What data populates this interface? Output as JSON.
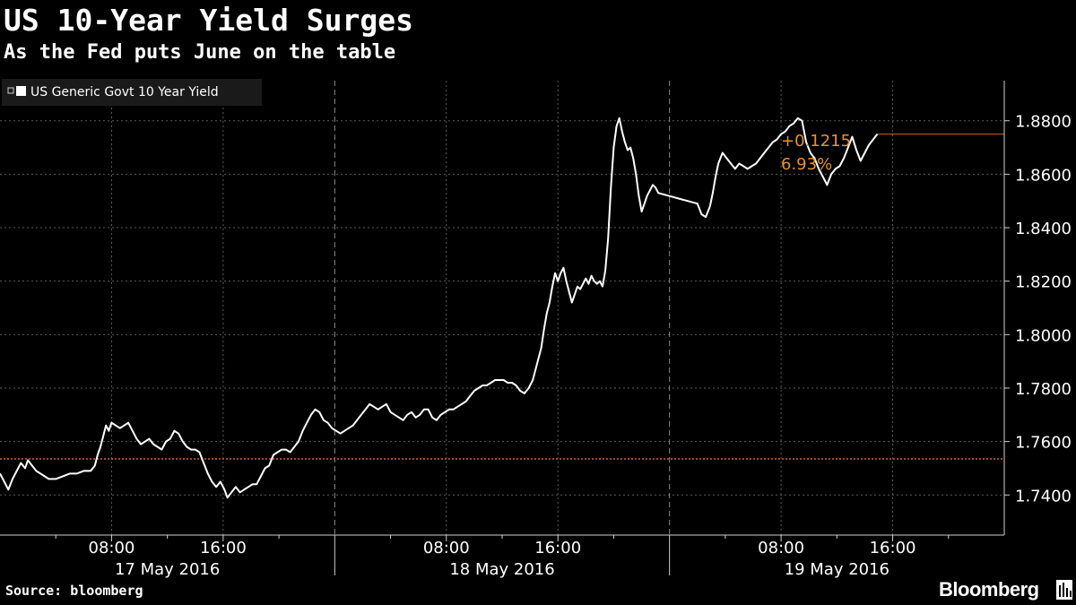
{
  "header": {
    "title": "US 10-Year Yield Surges",
    "subtitle": "As the Fed puts June on the table"
  },
  "footer": {
    "source": "Source: bloomberg",
    "brand": "Bloomberg"
  },
  "colors": {
    "background": "#000000",
    "line": "#ffffff",
    "accent": "#e8912e",
    "reference": "#c8672a",
    "grid": "#5a5a5a",
    "legend_bg": "#1a1a1a"
  },
  "chart_data": {
    "type": "line",
    "title": "US 10-Year Yield Surges",
    "subtitle": "As the Fed puts June on the table",
    "legend": {
      "entries": [
        "US Generic Govt 10 Year Yield"
      ],
      "placement": "top-left"
    },
    "y_axis": {
      "side": "right",
      "min": 1.725,
      "max": 1.895,
      "ticks": [
        1.74,
        1.76,
        1.78,
        1.8,
        1.82,
        1.84,
        1.86,
        1.88
      ],
      "tick_labels": [
        "1.7400",
        "1.7600",
        "1.7800",
        "1.8000",
        "1.8200",
        "1.8400",
        "1.8600",
        "1.8800"
      ]
    },
    "x_axis": {
      "min_hours": 0,
      "max_hours": 72,
      "time_ticks": [
        {
          "h": 8,
          "label": "08:00"
        },
        {
          "h": 16,
          "label": "16:00"
        },
        {
          "h": 32,
          "label": "08:00"
        },
        {
          "h": 40,
          "label": "16:00"
        },
        {
          "h": 56,
          "label": "08:00"
        },
        {
          "h": 64,
          "label": "16:00"
        }
      ],
      "minor_ticks_hours": [
        4,
        12,
        20,
        28,
        36,
        44,
        52,
        60,
        68
      ],
      "day_separators_hours": [
        24,
        48
      ],
      "day_labels": [
        {
          "h": 12,
          "label": "17 May 2016"
        },
        {
          "h": 36,
          "label": "18 May 2016"
        },
        {
          "h": 60,
          "label": "19 May 2016"
        }
      ]
    },
    "grid": true,
    "reference_line": {
      "value": 1.7535,
      "style": "dotted"
    },
    "last_value_line": {
      "value": 1.875
    },
    "change": {
      "abs": "+0.1215",
      "pct": "6.93%"
    },
    "series": [
      {
        "name": "US Generic Govt 10 Year Yield",
        "points": [
          [
            0.0,
            1.748
          ],
          [
            0.3,
            1.745
          ],
          [
            0.6,
            1.742
          ],
          [
            0.9,
            1.746
          ],
          [
            1.2,
            1.749
          ],
          [
            1.5,
            1.752
          ],
          [
            1.8,
            1.75
          ],
          [
            2.0,
            1.753
          ],
          [
            2.3,
            1.751
          ],
          [
            2.6,
            1.749
          ],
          [
            2.9,
            1.748
          ],
          [
            3.2,
            1.747
          ],
          [
            3.5,
            1.746
          ],
          [
            4.0,
            1.746
          ],
          [
            4.5,
            1.747
          ],
          [
            5.0,
            1.748
          ],
          [
            5.5,
            1.748
          ],
          [
            6.0,
            1.749
          ],
          [
            6.5,
            1.749
          ],
          [
            6.8,
            1.751
          ],
          [
            7.0,
            1.755
          ],
          [
            7.2,
            1.758
          ],
          [
            7.4,
            1.762
          ],
          [
            7.6,
            1.766
          ],
          [
            7.8,
            1.764
          ],
          [
            8.0,
            1.767
          ],
          [
            8.3,
            1.766
          ],
          [
            8.6,
            1.765
          ],
          [
            8.9,
            1.766
          ],
          [
            9.2,
            1.767
          ],
          [
            9.5,
            1.764
          ],
          [
            9.8,
            1.761
          ],
          [
            10.1,
            1.759
          ],
          [
            10.4,
            1.76
          ],
          [
            10.7,
            1.761
          ],
          [
            11.0,
            1.759
          ],
          [
            11.3,
            1.758
          ],
          [
            11.6,
            1.757
          ],
          [
            11.9,
            1.76
          ],
          [
            12.2,
            1.761
          ],
          [
            12.5,
            1.764
          ],
          [
            12.8,
            1.763
          ],
          [
            13.1,
            1.76
          ],
          [
            13.4,
            1.758
          ],
          [
            13.7,
            1.757
          ],
          [
            14.0,
            1.757
          ],
          [
            14.3,
            1.756
          ],
          [
            14.6,
            1.752
          ],
          [
            14.9,
            1.748
          ],
          [
            15.2,
            1.745
          ],
          [
            15.5,
            1.743
          ],
          [
            15.8,
            1.745
          ],
          [
            16.1,
            1.742
          ],
          [
            16.3,
            1.739
          ],
          [
            16.6,
            1.741
          ],
          [
            16.9,
            1.743
          ],
          [
            17.2,
            1.741
          ],
          [
            17.5,
            1.742
          ],
          [
            17.8,
            1.743
          ],
          [
            18.1,
            1.744
          ],
          [
            18.4,
            1.744
          ],
          [
            18.7,
            1.747
          ],
          [
            19.0,
            1.75
          ],
          [
            19.3,
            1.751
          ],
          [
            19.6,
            1.755
          ],
          [
            19.9,
            1.756
          ],
          [
            20.2,
            1.757
          ],
          [
            20.5,
            1.757
          ],
          [
            20.8,
            1.756
          ],
          [
            21.1,
            1.758
          ],
          [
            21.4,
            1.76
          ],
          [
            21.7,
            1.764
          ],
          [
            22.0,
            1.767
          ],
          [
            22.3,
            1.77
          ],
          [
            22.6,
            1.772
          ],
          [
            22.9,
            1.771
          ],
          [
            23.2,
            1.768
          ],
          [
            23.5,
            1.767
          ],
          [
            23.8,
            1.765
          ],
          [
            24.1,
            1.764
          ],
          [
            24.4,
            1.763
          ],
          [
            24.7,
            1.764
          ],
          [
            25.0,
            1.765
          ],
          [
            25.3,
            1.766
          ],
          [
            25.6,
            1.768
          ],
          [
            25.9,
            1.77
          ],
          [
            26.2,
            1.772
          ],
          [
            26.5,
            1.774
          ],
          [
            26.8,
            1.773
          ],
          [
            27.1,
            1.772
          ],
          [
            27.4,
            1.773
          ],
          [
            27.7,
            1.774
          ],
          [
            28.0,
            1.771
          ],
          [
            28.3,
            1.77
          ],
          [
            28.6,
            1.769
          ],
          [
            28.9,
            1.768
          ],
          [
            29.2,
            1.77
          ],
          [
            29.5,
            1.771
          ],
          [
            29.8,
            1.769
          ],
          [
            30.1,
            1.77
          ],
          [
            30.4,
            1.772
          ],
          [
            30.7,
            1.772
          ],
          [
            31.0,
            1.769
          ],
          [
            31.3,
            1.768
          ],
          [
            31.6,
            1.77
          ],
          [
            31.9,
            1.771
          ],
          [
            32.2,
            1.772
          ],
          [
            32.5,
            1.772
          ],
          [
            32.8,
            1.773
          ],
          [
            33.1,
            1.774
          ],
          [
            33.4,
            1.775
          ],
          [
            33.7,
            1.777
          ],
          [
            34.0,
            1.779
          ],
          [
            34.3,
            1.78
          ],
          [
            34.6,
            1.781
          ],
          [
            34.9,
            1.781
          ],
          [
            35.2,
            1.782
          ],
          [
            35.5,
            1.783
          ],
          [
            35.8,
            1.783
          ],
          [
            36.1,
            1.783
          ],
          [
            36.4,
            1.782
          ],
          [
            36.7,
            1.782
          ],
          [
            37.0,
            1.781
          ],
          [
            37.3,
            1.779
          ],
          [
            37.6,
            1.778
          ],
          [
            37.9,
            1.78
          ],
          [
            38.2,
            1.783
          ],
          [
            38.5,
            1.789
          ],
          [
            38.8,
            1.795
          ],
          [
            39.0,
            1.802
          ],
          [
            39.2,
            1.808
          ],
          [
            39.4,
            1.812
          ],
          [
            39.6,
            1.818
          ],
          [
            39.8,
            1.823
          ],
          [
            40.0,
            1.82
          ],
          [
            40.2,
            1.823
          ],
          [
            40.4,
            1.825
          ],
          [
            40.6,
            1.82
          ],
          [
            40.8,
            1.816
          ],
          [
            41.0,
            1.812
          ],
          [
            41.2,
            1.815
          ],
          [
            41.4,
            1.818
          ],
          [
            41.6,
            1.817
          ],
          [
            41.8,
            1.819
          ],
          [
            42.0,
            1.821
          ],
          [
            42.2,
            1.819
          ],
          [
            42.4,
            1.822
          ],
          [
            42.6,
            1.82
          ],
          [
            42.8,
            1.819
          ],
          [
            43.0,
            1.82
          ],
          [
            43.2,
            1.818
          ],
          [
            43.4,
            1.824
          ],
          [
            43.6,
            1.836
          ],
          [
            43.8,
            1.855
          ],
          [
            44.0,
            1.87
          ],
          [
            44.2,
            1.878
          ],
          [
            44.4,
            1.881
          ],
          [
            44.6,
            1.876
          ],
          [
            44.8,
            1.872
          ],
          [
            45.0,
            1.869
          ],
          [
            45.2,
            1.87
          ],
          [
            45.4,
            1.866
          ],
          [
            45.6,
            1.86
          ],
          [
            45.8,
            1.852
          ],
          [
            46.0,
            1.846
          ],
          [
            46.2,
            1.849
          ],
          [
            46.4,
            1.852
          ],
          [
            46.6,
            1.854
          ],
          [
            46.8,
            1.856
          ],
          [
            47.0,
            1.855
          ],
          [
            47.2,
            1.853
          ],
          [
            50.0,
            1.849
          ],
          [
            50.3,
            1.845
          ],
          [
            50.6,
            1.844
          ],
          [
            50.9,
            1.848
          ],
          [
            51.1,
            1.853
          ],
          [
            51.3,
            1.859
          ],
          [
            51.5,
            1.864
          ],
          [
            51.8,
            1.868
          ],
          [
            52.1,
            1.866
          ],
          [
            52.4,
            1.864
          ],
          [
            52.7,
            1.862
          ],
          [
            53.0,
            1.864
          ],
          [
            53.3,
            1.863
          ],
          [
            53.6,
            1.862
          ],
          [
            53.9,
            1.863
          ],
          [
            54.2,
            1.864
          ],
          [
            54.5,
            1.866
          ],
          [
            54.8,
            1.868
          ],
          [
            55.1,
            1.87
          ],
          [
            55.4,
            1.872
          ],
          [
            55.7,
            1.873
          ],
          [
            56.0,
            1.875
          ],
          [
            56.3,
            1.876
          ],
          [
            56.6,
            1.878
          ],
          [
            56.9,
            1.879
          ],
          [
            57.2,
            1.881
          ],
          [
            57.5,
            1.88
          ],
          [
            57.8,
            1.872
          ],
          [
            58.1,
            1.868
          ],
          [
            58.4,
            1.866
          ],
          [
            58.7,
            1.862
          ],
          [
            59.0,
            1.859
          ],
          [
            59.3,
            1.856
          ],
          [
            59.6,
            1.86
          ],
          [
            59.9,
            1.862
          ],
          [
            60.2,
            1.863
          ],
          [
            60.5,
            1.866
          ],
          [
            60.8,
            1.87
          ],
          [
            61.1,
            1.874
          ],
          [
            61.4,
            1.869
          ],
          [
            61.7,
            1.865
          ],
          [
            62.0,
            1.868
          ],
          [
            62.3,
            1.871
          ],
          [
            62.6,
            1.873
          ],
          [
            62.9,
            1.875
          ]
        ]
      }
    ]
  }
}
